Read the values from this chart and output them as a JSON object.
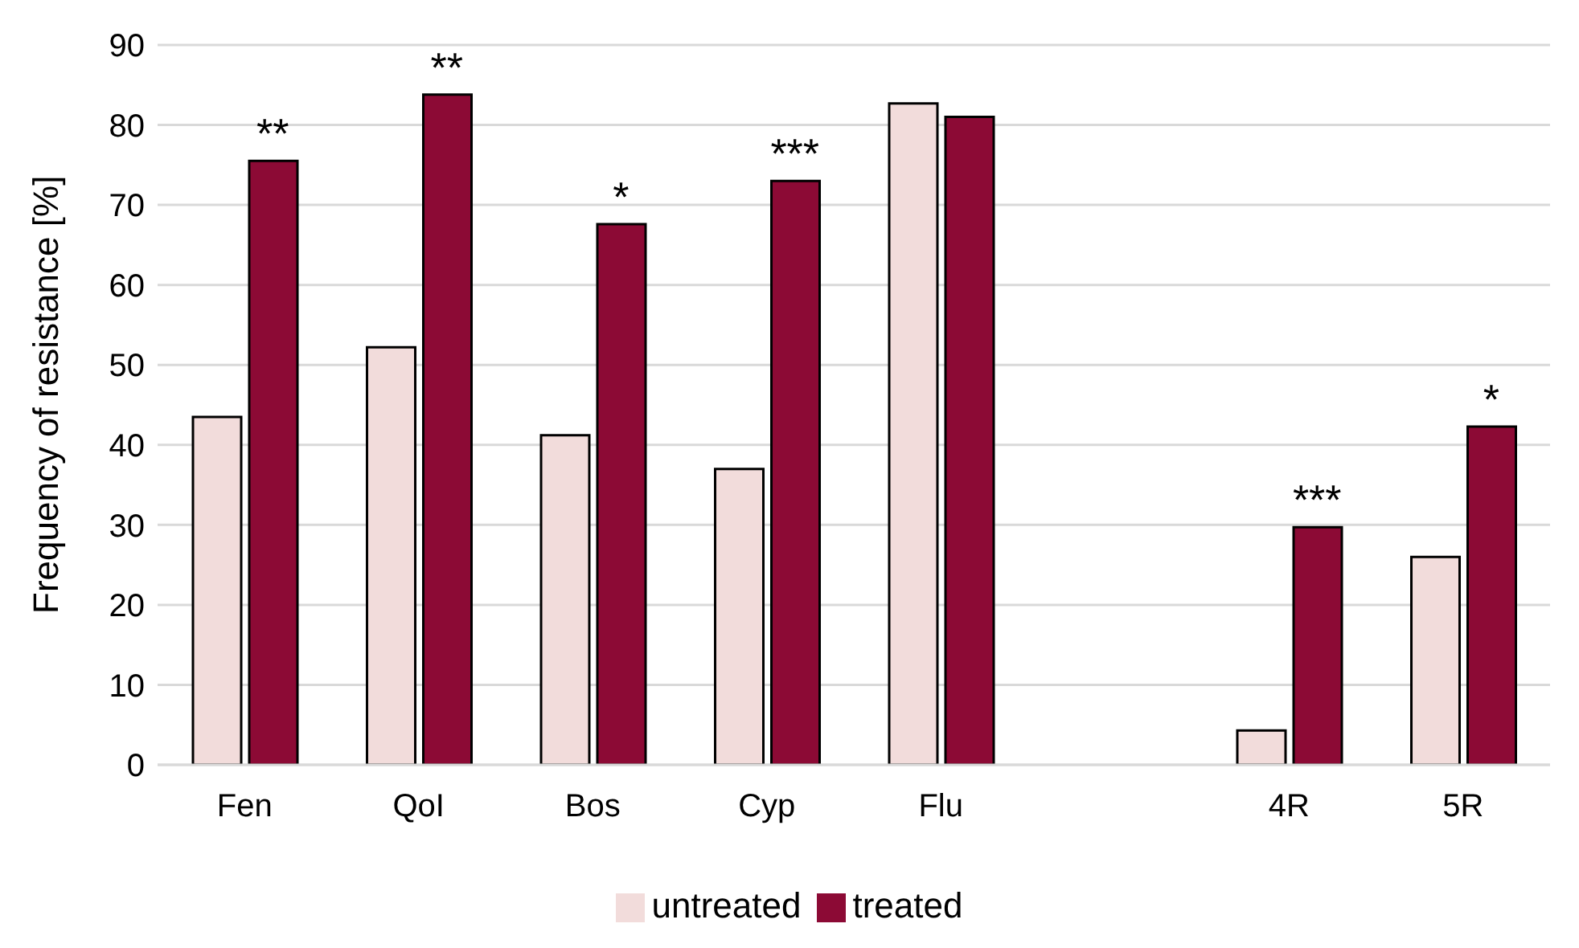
{
  "chart_data": {
    "type": "bar",
    "ylabel": "Frequency of resistance [%]",
    "categories": [
      "Fen",
      "QoI",
      "Bos",
      "Cyp",
      "Flu",
      null,
      "4R",
      "5R"
    ],
    "series": [
      {
        "name": "untreated",
        "color": "#f2dcdb",
        "values": [
          43.5,
          52.2,
          41.2,
          37,
          82.7,
          null,
          4.3,
          26
        ]
      },
      {
        "name": "treated",
        "color": "#8c0a35",
        "values": [
          75.5,
          83.8,
          67.6,
          73,
          81,
          null,
          29.7,
          42.3
        ]
      }
    ],
    "ylim": [
      0,
      90
    ],
    "yticks": [
      0,
      10,
      20,
      30,
      40,
      50,
      60,
      70,
      80,
      90
    ],
    "grid": "y",
    "legend": "bottom",
    "annotations": [
      {
        "text": "**",
        "x": "Fen",
        "y": 75.5
      },
      {
        "text": "**",
        "x": "QoI",
        "y": 83.8
      },
      {
        "text": "*",
        "x": "Bos",
        "y": 67.6
      },
      {
        "text": "***",
        "x": "Cyp",
        "y": 73
      },
      {
        "text": "***",
        "x": "4R",
        "y": 29.7
      },
      {
        "text": "*",
        "x": "5R",
        "y": 42.3
      }
    ]
  }
}
